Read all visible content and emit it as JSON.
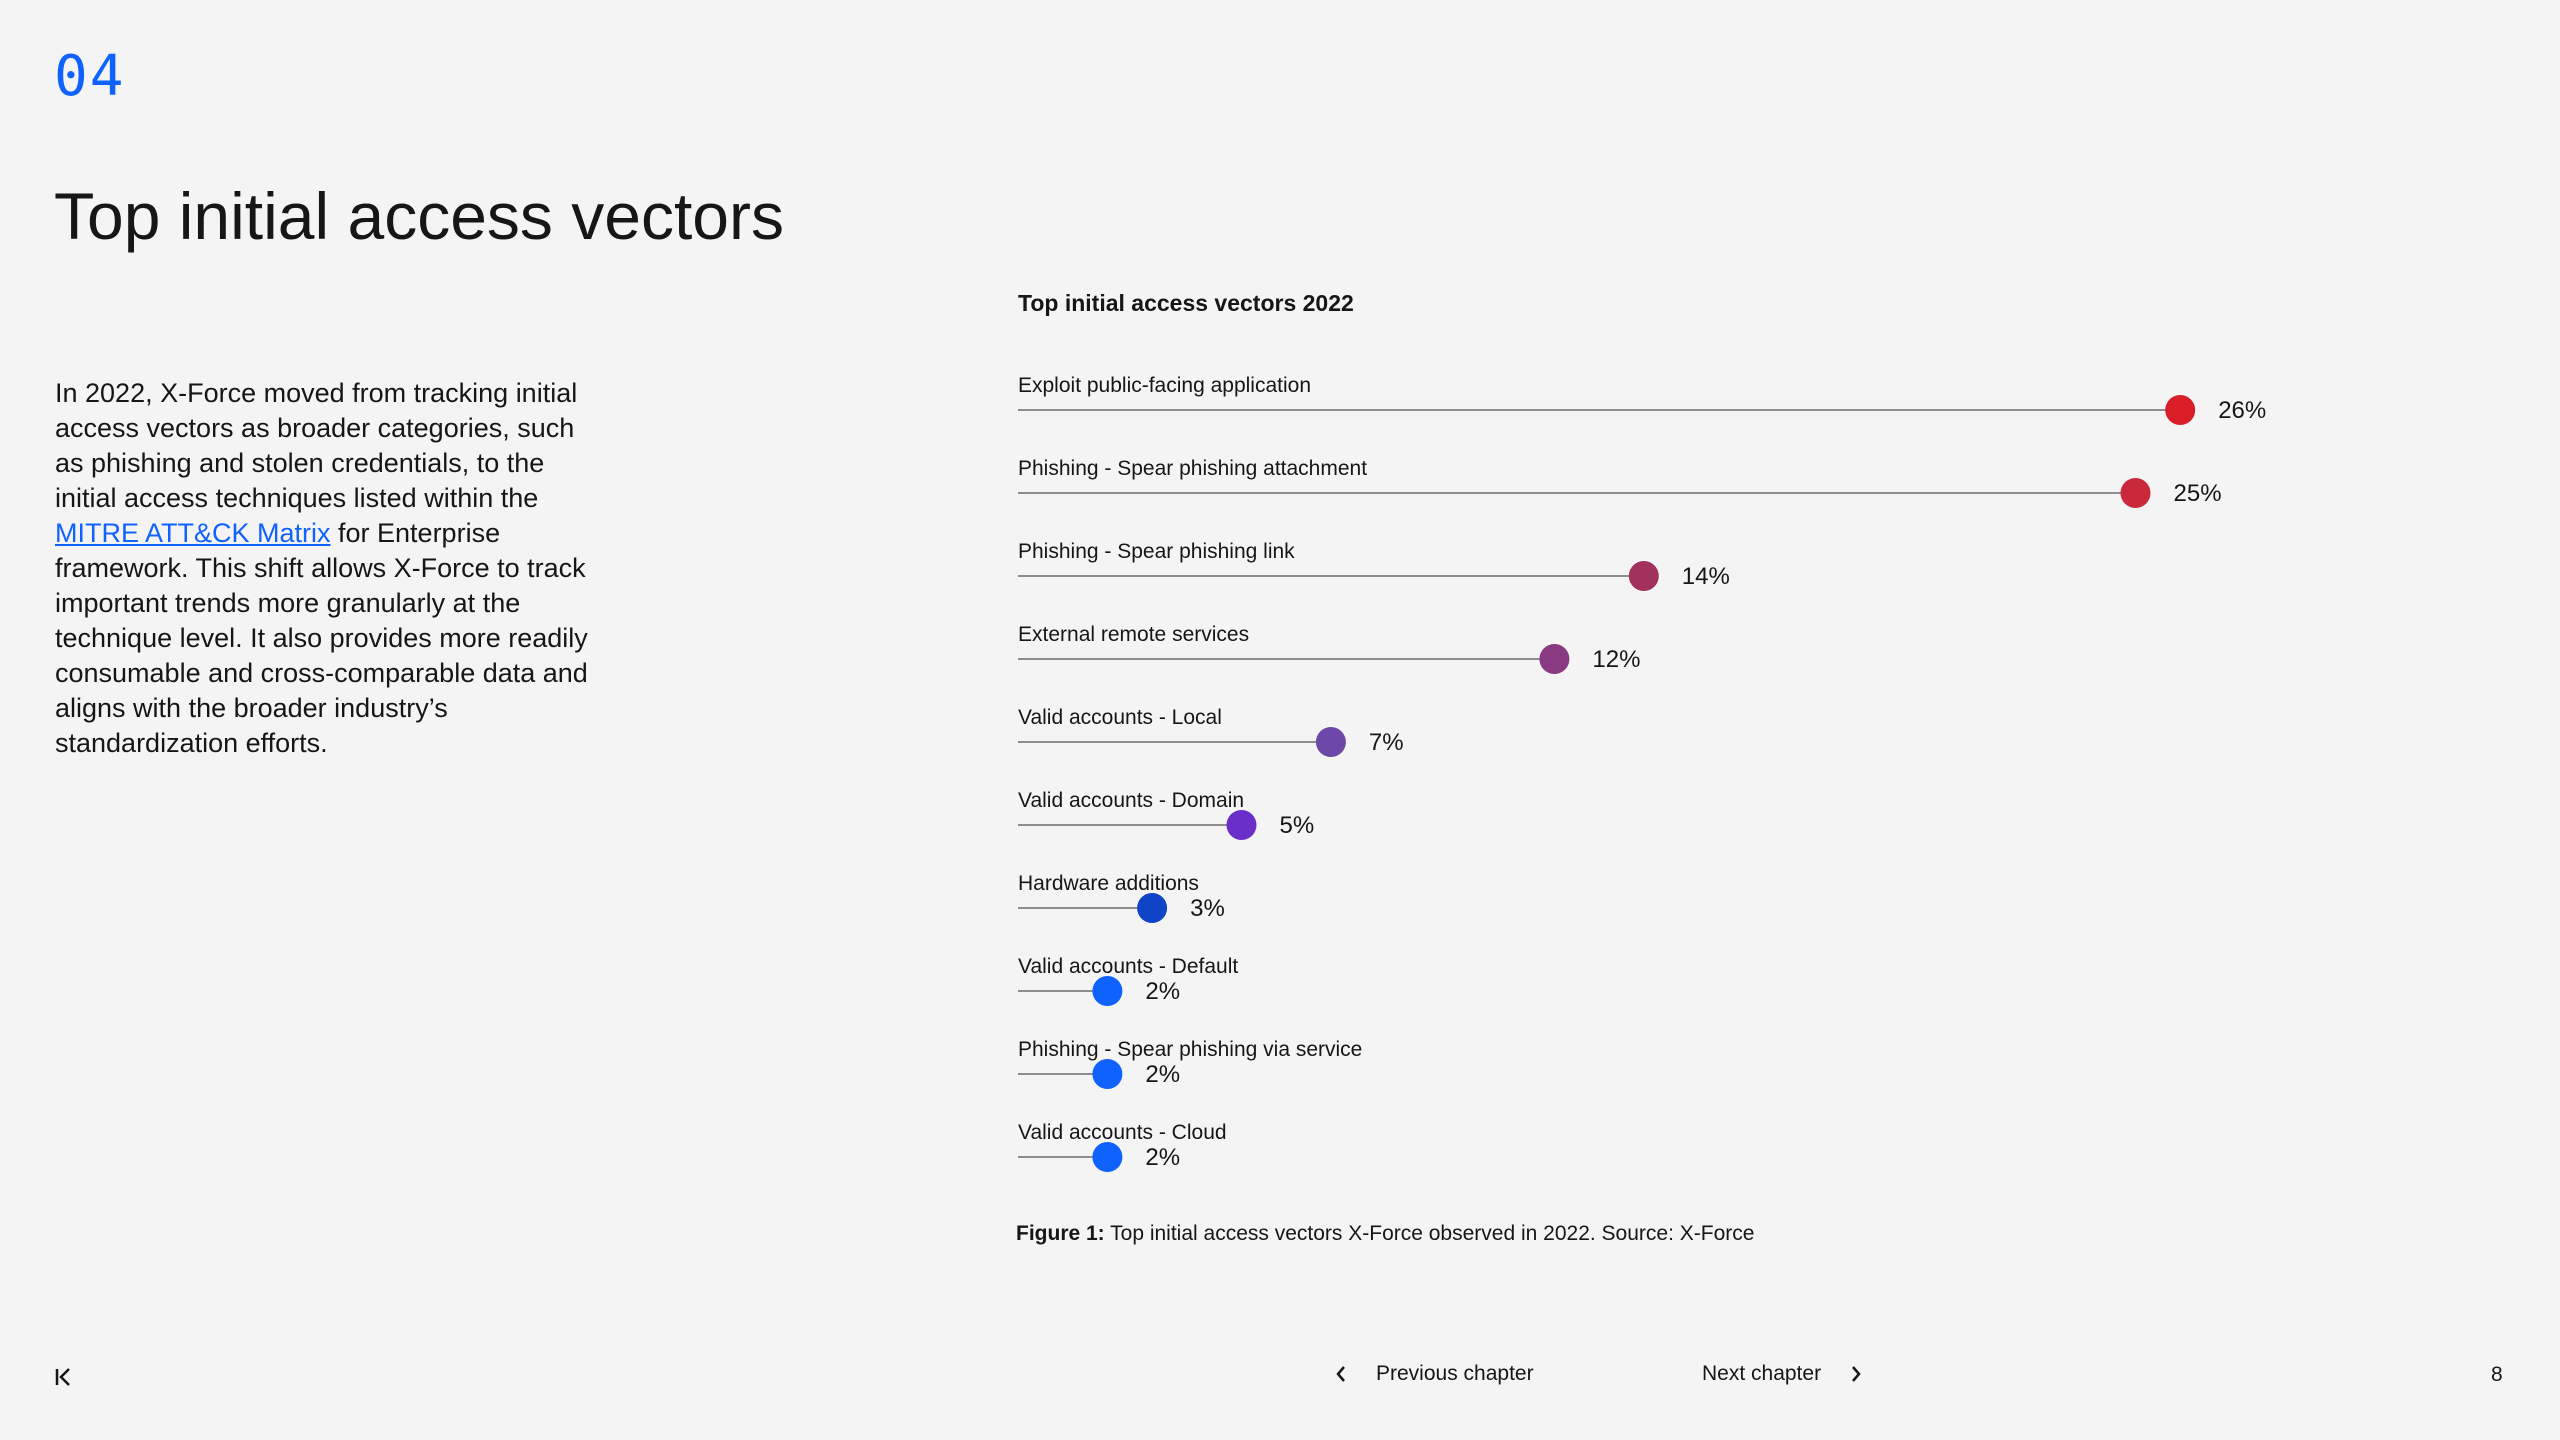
{
  "chapter_number": "04",
  "page_title": "Top initial access vectors",
  "body": {
    "text_before_link": "In 2022, X-Force moved from tracking initial access vectors as broader categories, such as phishing and stolen credentials, to the initial access techniques listed within the ",
    "link_text": "MITRE ATT&CK Matrix",
    "text_after_link": " for Enterprise framework. This shift allows X-Force to track important trends more granularly at the technique level. It also provides more readily consumable and cross-comparable data and aligns with the broader industry’s standardization efforts."
  },
  "chart_data": {
    "type": "lollipop",
    "title": "Top initial access vectors 2022",
    "categories": [
      "Exploit public-facing application",
      "Phishing - Spear phishing attachment",
      "Phishing - Spear phishing link",
      "External remote services",
      "Valid accounts - Local",
      "Valid accounts - Domain",
      "Hardware additions",
      "Valid accounts - Default",
      "Phishing - Spear phishing via service",
      "Valid accounts - Cloud"
    ],
    "values": [
      26,
      25,
      14,
      12,
      7,
      5,
      3,
      2,
      2,
      2
    ],
    "value_labels": [
      "26%",
      "25%",
      "14%",
      "12%",
      "7%",
      "5%",
      "3%",
      "2%",
      "2%",
      "2%"
    ],
    "colors": [
      "#da1e28",
      "#c9293a",
      "#a2315e",
      "#8a3a82",
      "#6e48a8",
      "#6b2fc9",
      "#0f43c8",
      "#0f62fe",
      "#0f62fe",
      "#0f62fe"
    ],
    "unit": "%"
  },
  "caption": {
    "label": "Figure 1:",
    "text": " Top initial access vectors X-Force observed in 2022. Source: X-Force"
  },
  "footer": {
    "first_page_icon": "first-page-icon",
    "previous_label": "Previous chapter",
    "next_label": "Next chapter",
    "page_number": "8"
  }
}
